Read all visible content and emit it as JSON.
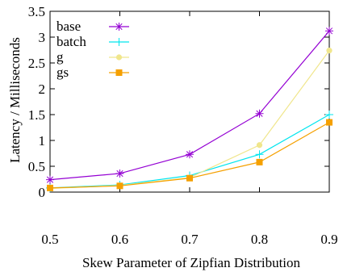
{
  "chart_data": {
    "type": "line",
    "xlabel": "Skew Parameter of Zipfian Distribution",
    "ylabel": "Latency / Milliseconds",
    "x": [
      0.5,
      0.6,
      0.7,
      0.8,
      0.9
    ],
    "xticks": [
      "0.5",
      "0.6",
      "0.7",
      "0.8",
      "0.9"
    ],
    "yticks": [
      "0",
      "0.5",
      "1",
      "1.5",
      "2",
      "2.5",
      "3",
      "3.5"
    ],
    "xlim": [
      0.5,
      0.9
    ],
    "ylim": [
      0,
      3.5
    ],
    "grid": false,
    "legend_position": "top-left",
    "series": [
      {
        "name": "base",
        "values": [
          0.24,
          0.36,
          0.73,
          1.52,
          3.12
        ],
        "color": "#9400d3",
        "marker": "asterisk"
      },
      {
        "name": "batch",
        "values": [
          0.08,
          0.14,
          0.32,
          0.73,
          1.5
        ],
        "color": "#00e5ee",
        "marker": "plus"
      },
      {
        "name": "g",
        "values": [
          0.07,
          0.13,
          0.28,
          0.91,
          2.74
        ],
        "color": "#f0e68c",
        "marker": "circle"
      },
      {
        "name": "gs",
        "values": [
          0.08,
          0.12,
          0.27,
          0.58,
          1.35
        ],
        "color": "#f5a000",
        "marker": "square"
      }
    ]
  }
}
